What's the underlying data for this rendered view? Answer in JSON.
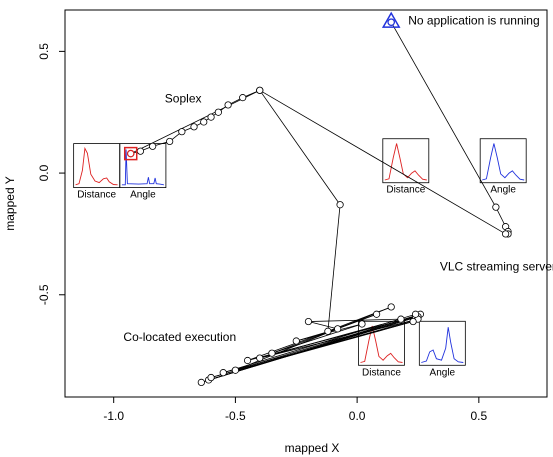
{
  "chart_data": {
    "type": "line",
    "xlabel": "mapped X",
    "ylabel": "mapped Y",
    "xlim": [
      -1.2,
      0.78
    ],
    "ylim": [
      -0.92,
      0.67
    ],
    "x_ticks": [
      -1.0,
      -0.5,
      0.0,
      0.5
    ],
    "y_ticks": [
      -0.5,
      0.0,
      0.5
    ],
    "x_tick_labels": [
      "-1.0",
      "-0.5",
      "0.0",
      "0.5"
    ],
    "y_tick_labels": [
      "-0.5",
      "0.0",
      "0.5"
    ],
    "trajectory": [
      {
        "x": 0.14,
        "y": 0.62
      },
      {
        "x": 0.57,
        "y": -0.14
      },
      {
        "x": 0.61,
        "y": -0.22
      },
      {
        "x": 0.62,
        "y": -0.24
      },
      {
        "x": 0.62,
        "y": -0.25
      },
      {
        "x": 0.61,
        "y": -0.25
      },
      {
        "x": -0.4,
        "y": 0.34
      },
      {
        "x": -0.47,
        "y": 0.31
      },
      {
        "x": -0.53,
        "y": 0.28
      },
      {
        "x": -0.57,
        "y": 0.25
      },
      {
        "x": -0.6,
        "y": 0.23
      },
      {
        "x": -0.63,
        "y": 0.21
      },
      {
        "x": -0.67,
        "y": 0.19
      },
      {
        "x": -0.72,
        "y": 0.17
      },
      {
        "x": -0.77,
        "y": 0.13
      },
      {
        "x": -0.84,
        "y": 0.11
      },
      {
        "x": -0.89,
        "y": 0.09
      },
      {
        "x": -0.93,
        "y": 0.08
      },
      {
        "x": -0.4,
        "y": 0.34
      },
      {
        "x": -0.07,
        "y": -0.13
      },
      {
        "x": -0.12,
        "y": -0.65
      },
      {
        "x": 0.14,
        "y": -0.55
      },
      {
        "x": -0.5,
        "y": -0.81
      },
      {
        "x": 0.26,
        "y": -0.58
      },
      {
        "x": -0.64,
        "y": -0.86
      },
      {
        "x": 0.25,
        "y": -0.59
      },
      {
        "x": -0.61,
        "y": -0.85
      },
      {
        "x": 0.24,
        "y": -0.59
      },
      {
        "x": -0.45,
        "y": -0.77
      },
      {
        "x": 0.08,
        "y": -0.58
      },
      {
        "x": -0.35,
        "y": -0.74
      },
      {
        "x": 0.02,
        "y": -0.62
      },
      {
        "x": -0.25,
        "y": -0.69
      },
      {
        "x": -0.08,
        "y": -0.64
      },
      {
        "x": -0.2,
        "y": -0.61
      },
      {
        "x": 0.18,
        "y": -0.6
      },
      {
        "x": -0.4,
        "y": -0.76
      },
      {
        "x": 0.25,
        "y": -0.6
      },
      {
        "x": -0.6,
        "y": -0.84
      },
      {
        "x": 0.23,
        "y": -0.61
      },
      {
        "x": -0.55,
        "y": -0.82
      },
      {
        "x": 0.24,
        "y": -0.58
      }
    ],
    "markers": [
      {
        "kind": "triangle",
        "color": "#2233dd",
        "x": 0.14,
        "y": 0.62
      },
      {
        "kind": "square",
        "color": "#dd2222",
        "x": -0.93,
        "y": 0.08
      }
    ],
    "annotations": [
      {
        "text": "No application is running",
        "x": 0.21,
        "y": 0.61
      },
      {
        "text": "Soplex",
        "x": -0.79,
        "y": 0.29
      },
      {
        "text": "VLC streaming server",
        "x": 0.34,
        "y": -0.4
      },
      {
        "text": "Co-located execution",
        "x": -0.96,
        "y": -0.69
      }
    ],
    "insets": [
      {
        "label": "Distance",
        "color": "#dd2222",
        "shape": "peak_then_tail",
        "anchor_x": -1.07,
        "anchor_y": 0.08
      },
      {
        "label": "Angle",
        "color": "#2233dd",
        "shape": "spike_small",
        "anchor_x": -0.88,
        "anchor_y": 0.08
      },
      {
        "label": "Distance",
        "color": "#dd2222",
        "shape": "peak_then_bump",
        "anchor_x": 0.2,
        "anchor_y": 0.1
      },
      {
        "label": "Angle",
        "color": "#2233dd",
        "shape": "peak_then_bump",
        "anchor_x": 0.6,
        "anchor_y": 0.1
      },
      {
        "label": "Distance",
        "color": "#dd2222",
        "shape": "peak_then_bump",
        "anchor_x": 0.1,
        "anchor_y": -0.65
      },
      {
        "label": "Angle",
        "color": "#2233dd",
        "shape": "two_peaks_high_right",
        "anchor_x": 0.35,
        "anchor_y": -0.65
      }
    ]
  }
}
